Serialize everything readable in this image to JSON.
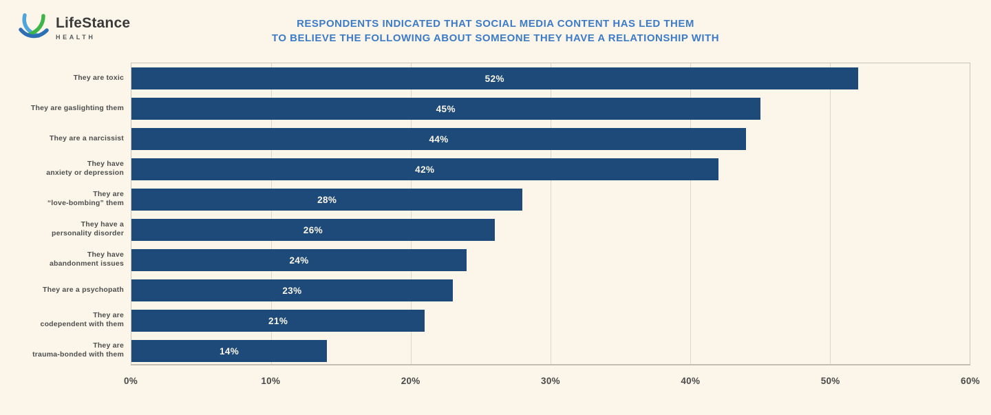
{
  "page": {
    "background": "#FBF6E9"
  },
  "logo": {
    "brand": "LifeStance",
    "sub": "HEALTH",
    "mark_colors": {
      "light_blue": "#4FA4DB",
      "green": "#3FB549",
      "blue": "#2C6FB4"
    }
  },
  "title": {
    "line1": "RESPONDENTS INDICATED THAT SOCIAL MEDIA CONTENT HAS LED THEM",
    "line2": "TO BELIEVE THE FOLLOWING ABOUT SOMEONE THEY HAVE A RELATIONSHIP WITH",
    "color": "#3D7BC6"
  },
  "chart_data": {
    "type": "bar",
    "orientation": "horizontal",
    "categories": [
      "They are toxic",
      "They are gaslighting them",
      "They are a narcissist",
      "They have\nanxiety or depression",
      "They are\n“love-bombing” them",
      "They have a\npersonality disorder",
      "They have\nabandonment issues",
      "They are a psychopath",
      "They are\ncodependent with them",
      "They are\ntrauma-bonded with them"
    ],
    "values": [
      52,
      45,
      44,
      42,
      28,
      26,
      24,
      23,
      21,
      14
    ],
    "value_labels": [
      "52%",
      "45%",
      "44%",
      "42%",
      "28%",
      "26%",
      "24%",
      "23%",
      "21%",
      "14%"
    ],
    "xlim": [
      0,
      60
    ],
    "x_ticks": [
      "0%",
      "10%",
      "20%",
      "30%",
      "40%",
      "50%",
      "60%"
    ],
    "grid": "vertical",
    "legend": "none",
    "bar_color": "#1D4A78",
    "value_label_color": "#FAF6E9"
  }
}
